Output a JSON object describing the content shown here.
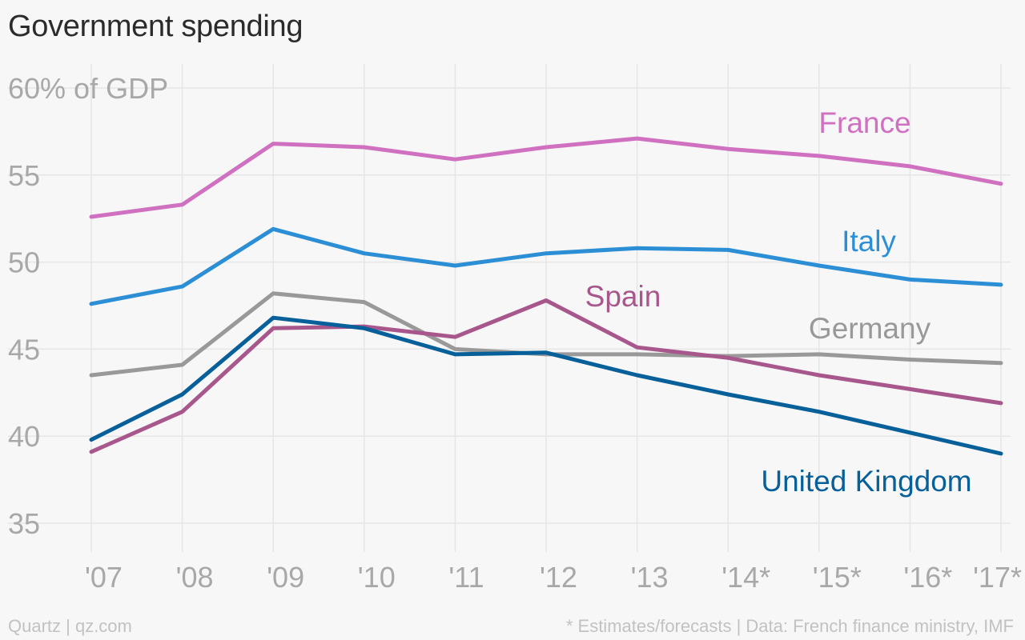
{
  "chart_data": {
    "type": "line",
    "title": "Government spending",
    "ylabel_unit": "60% of GDP",
    "categories": [
      "'07",
      "'08",
      "'09",
      "'10",
      "'11",
      "'12",
      "'13",
      "'14*",
      "'15*",
      "'16*",
      "'17*"
    ],
    "y_ticks": [
      {
        "value": 60,
        "label": "60% of GDP"
      },
      {
        "value": 55,
        "label": "55"
      },
      {
        "value": 50,
        "label": "50"
      },
      {
        "value": 45,
        "label": "45"
      },
      {
        "value": 40,
        "label": "40"
      },
      {
        "value": 35,
        "label": "35"
      }
    ],
    "ylim": [
      35,
      60
    ],
    "grid": true,
    "series": [
      {
        "name": "France",
        "color": "#d070c0",
        "values": [
          52.6,
          53.3,
          56.8,
          56.6,
          55.9,
          56.6,
          57.1,
          56.5,
          56.1,
          55.5,
          54.5
        ]
      },
      {
        "name": "Italy",
        "color": "#2c8fd6",
        "values": [
          47.6,
          48.6,
          51.9,
          50.5,
          49.8,
          50.5,
          50.8,
          50.7,
          49.8,
          49.0,
          48.7
        ]
      },
      {
        "name": "Germany",
        "color": "#999999",
        "values": [
          43.5,
          44.1,
          48.2,
          47.7,
          45.0,
          44.7,
          44.7,
          44.6,
          44.7,
          44.4,
          44.2
        ]
      },
      {
        "name": "Spain",
        "color": "#a8578c",
        "values": [
          39.1,
          41.4,
          46.2,
          46.3,
          45.7,
          47.8,
          45.1,
          44.5,
          43.5,
          42.7,
          41.9
        ]
      },
      {
        "name": "United Kingdom",
        "color": "#07609a",
        "values": [
          39.8,
          42.4,
          46.8,
          46.2,
          44.7,
          44.8,
          43.5,
          42.4,
          41.4,
          40.2,
          39.0
        ]
      }
    ]
  },
  "footer": {
    "source_left": "Quartz | qz.com",
    "source_right": "* Estimates/forecasts | Data: French finance ministry, IMF"
  }
}
